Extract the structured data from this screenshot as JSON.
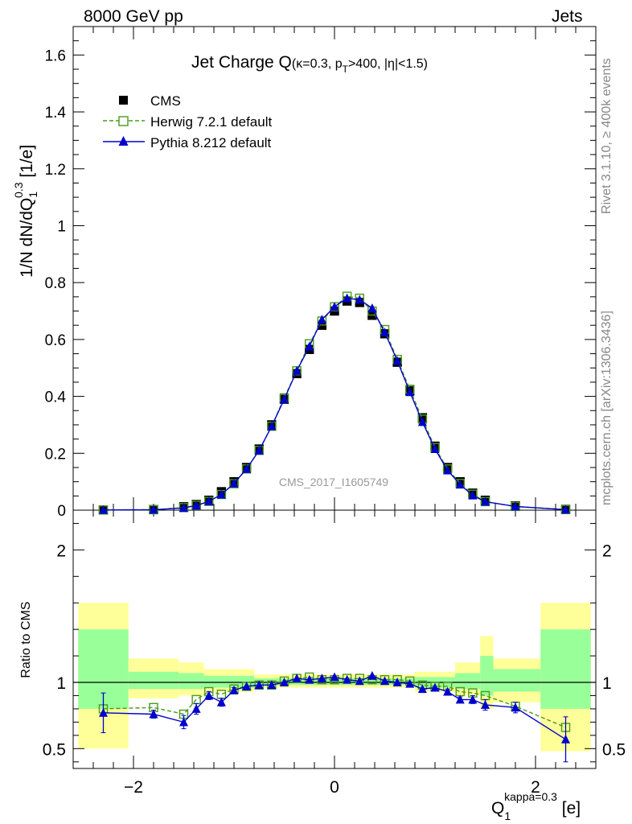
{
  "header": {
    "energy_label": "8000 GeV pp",
    "process_label": "Jets"
  },
  "side": {
    "rivet_label": "Rivet 3.1.10, ≥ 400k events",
    "source_label": "mcplots.cern.ch [arXiv:1306.3436]"
  },
  "chart_data": [
    {
      "type": "scatter",
      "title_main": "Jet Charge Q",
      "title_detail": "(κ=0.3, p",
      "title_sub": "T",
      "title_rest": ">400, |η|<1.5)",
      "ylabel": "1/N dN/dQ",
      "ylabel_sub": "1",
      "ylabel_sup": "0.3",
      "ylabel_unit": " [1/e]",
      "watermark": "CMS_2017_I1605749",
      "xlim": [
        -2.6,
        2.6
      ],
      "ylim": [
        0,
        1.7
      ],
      "y_ticks": [
        0,
        0.2,
        0.4,
        0.6,
        0.8,
        1,
        1.2,
        1.4,
        1.6
      ],
      "y_tick_labels": [
        "0",
        "0.2",
        "0.4",
        "0.6",
        "0.8",
        "1",
        "1.2",
        "1.4",
        "1.6"
      ],
      "legend_position": "top-left",
      "x": [
        -2.3,
        -1.8,
        -1.5,
        -1.375,
        -1.25,
        -1.125,
        -1.0,
        -0.875,
        -0.75,
        -0.625,
        -0.5,
        -0.375,
        -0.25,
        -0.125,
        0.0,
        0.125,
        0.25,
        0.375,
        0.5,
        0.625,
        0.75,
        0.875,
        1.0,
        1.125,
        1.25,
        1.375,
        1.5,
        1.8,
        2.3
      ],
      "series": [
        {
          "name": "CMS",
          "color": "#000000",
          "marker": "filled-square",
          "values": [
            0.001,
            0.002,
            0.012,
            0.02,
            0.035,
            0.065,
            0.1,
            0.15,
            0.215,
            0.3,
            0.39,
            0.48,
            0.565,
            0.65,
            0.7,
            0.735,
            0.73,
            0.685,
            0.62,
            0.52,
            0.42,
            0.325,
            0.225,
            0.15,
            0.1,
            0.06,
            0.035,
            0.015,
            0.003
          ]
        },
        {
          "name": "Herwig 7.2.1 default",
          "color": "#4a9a1a",
          "marker": "open-square",
          "values": [
            0.0008,
            0.0016,
            0.009,
            0.017,
            0.031,
            0.055,
            0.093,
            0.145,
            0.21,
            0.295,
            0.395,
            0.49,
            0.585,
            0.665,
            0.715,
            0.752,
            0.745,
            0.7,
            0.635,
            0.53,
            0.425,
            0.32,
            0.22,
            0.145,
            0.094,
            0.056,
            0.03,
            0.013,
            0.002
          ]
        },
        {
          "name": "Pythia 8.212 default",
          "color": "#0000cc",
          "marker": "filled-triangle",
          "values": [
            0.0008,
            0.0015,
            0.008,
            0.016,
            0.031,
            0.055,
            0.094,
            0.145,
            0.21,
            0.295,
            0.39,
            0.49,
            0.575,
            0.67,
            0.715,
            0.745,
            0.74,
            0.71,
            0.625,
            0.525,
            0.415,
            0.31,
            0.215,
            0.14,
            0.09,
            0.052,
            0.03,
            0.013,
            0.002
          ]
        }
      ]
    },
    {
      "type": "scatter",
      "ylabel": "Ratio to CMS",
      "xlabel": "Q",
      "xlabel_sub": "1",
      "xlabel_sup": "kappa=0.3",
      "xlabel_unit": " [e]",
      "xlim": [
        -2.6,
        2.6
      ],
      "ylim": [
        0.35,
        2.3
      ],
      "x_ticks": [
        -2,
        0,
        2
      ],
      "x_tick_labels": [
        "−2",
        "0",
        "2"
      ],
      "y_ticks": [
        0.5,
        1,
        2
      ],
      "y_tick_labels": [
        "0.5",
        "1",
        "2"
      ],
      "reference_line": 1,
      "bands": [
        {
          "x0": -2.55,
          "x1": -2.05,
          "yellow": [
            0.5,
            1.6
          ],
          "green": [
            0.8,
            1.4
          ]
        },
        {
          "x0": -2.05,
          "x1": -1.55,
          "yellow": [
            0.88,
            1.18
          ],
          "green": [
            0.95,
            1.08
          ]
        },
        {
          "x0": -1.55,
          "x1": -1.3,
          "yellow": [
            0.9,
            1.15
          ],
          "green": [
            0.95,
            1.07
          ]
        },
        {
          "x0": -1.3,
          "x1": -0.8,
          "yellow": [
            0.93,
            1.1
          ],
          "green": [
            0.96,
            1.05
          ]
        },
        {
          "x0": -0.8,
          "x1": 0.8,
          "yellow": [
            0.96,
            1.06
          ],
          "green": [
            0.98,
            1.03
          ]
        },
        {
          "x0": 0.8,
          "x1": 1.2,
          "yellow": [
            0.93,
            1.08
          ],
          "green": [
            0.96,
            1.04
          ]
        },
        {
          "x0": 1.2,
          "x1": 1.45,
          "yellow": [
            0.9,
            1.15
          ],
          "green": [
            0.95,
            1.07
          ]
        },
        {
          "x0": 1.45,
          "x1": 1.58,
          "yellow": [
            0.8,
            1.35
          ],
          "green": [
            0.9,
            1.2
          ]
        },
        {
          "x0": 1.58,
          "x1": 2.05,
          "yellow": [
            0.85,
            1.18
          ],
          "green": [
            0.93,
            1.1
          ]
        },
        {
          "x0": 2.05,
          "x1": 2.55,
          "yellow": [
            0.48,
            1.6
          ],
          "green": [
            0.8,
            1.4
          ]
        }
      ],
      "x": [
        -2.3,
        -1.8,
        -1.5,
        -1.375,
        -1.25,
        -1.125,
        -1.0,
        -0.875,
        -0.75,
        -0.625,
        -0.5,
        -0.375,
        -0.25,
        -0.125,
        0.0,
        0.125,
        0.25,
        0.375,
        0.5,
        0.625,
        0.75,
        0.875,
        1.0,
        1.125,
        1.25,
        1.375,
        1.5,
        1.8,
        2.3
      ],
      "series": [
        {
          "name": "Herwig 7.2.1 default",
          "color": "#4a9a1a",
          "values": [
            0.8,
            0.81,
            0.76,
            0.87,
            0.93,
            0.91,
            0.95,
            0.97,
            0.98,
            0.98,
            1.01,
            1.03,
            1.04,
            1.02,
            1.02,
            1.03,
            1.03,
            1.02,
            1.02,
            1.02,
            1.01,
            0.98,
            0.97,
            0.97,
            0.93,
            0.92,
            0.9,
            0.82,
            0.66
          ]
        },
        {
          "name": "Pythia 8.212 default",
          "color": "#0000cc",
          "values": [
            0.77,
            0.76,
            0.7,
            0.8,
            0.9,
            0.85,
            0.94,
            0.97,
            0.98,
            0.98,
            1.0,
            1.03,
            1.02,
            1.03,
            1.04,
            1.02,
            1.01,
            1.05,
            1.01,
            1.0,
            0.99,
            0.95,
            0.96,
            0.93,
            0.87,
            0.87,
            0.83,
            0.81,
            0.57
          ],
          "errors": [
            0.15,
            0.03,
            0.05,
            0.04,
            0.03,
            0.03,
            0.02,
            0.01,
            0.01,
            0.01,
            0.01,
            0.01,
            0.01,
            0.01,
            0.01,
            0.01,
            0.01,
            0.01,
            0.01,
            0.01,
            0.01,
            0.01,
            0.01,
            0.02,
            0.02,
            0.03,
            0.04,
            0.04,
            0.17
          ]
        }
      ]
    }
  ]
}
